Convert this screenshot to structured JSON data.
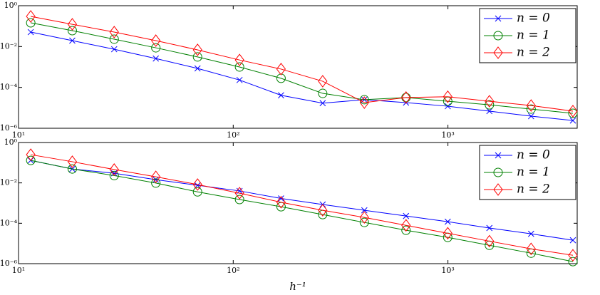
{
  "chart_data": [
    {
      "type": "line",
      "xscale": "log",
      "yscale": "log",
      "legend": "upper right",
      "grid": false,
      "x": [
        11.4,
        17.8,
        27.9,
        43.6,
        68.2,
        107,
        167,
        261,
        408,
        638,
        998,
        1560,
        2440,
        3820
      ],
      "xlim": [
        10,
        4000
      ],
      "xticks": [
        {
          "value": 10,
          "label": "10¹"
        },
        {
          "value": 100,
          "label": "10²"
        },
        {
          "value": 1000,
          "label": "10³"
        }
      ],
      "ylim": [
        1e-06,
        1
      ],
      "yticks": [
        {
          "value": 1e-06,
          "label": "10⁻⁶"
        },
        {
          "value": 0.0001,
          "label": "10⁻⁴"
        },
        {
          "value": 0.01,
          "label": "10⁻²"
        },
        {
          "value": 1,
          "label": "10⁰"
        }
      ],
      "series": [
        {
          "name": "n = 0",
          "color": "#0000ff",
          "marker": "x",
          "values": [
            0.051,
            0.0195,
            0.0074,
            0.0026,
            0.00085,
            0.00023,
            4.1e-05,
            1.7e-05,
            2.5e-05,
            1.8e-05,
            1.2e-05,
            6.9e-06,
            3.9e-06,
            2.4e-06
          ]
        },
        {
          "name": "n = 1",
          "color": "#008000",
          "marker": "o",
          "values": [
            0.145,
            0.06,
            0.023,
            0.0087,
            0.0031,
            0.001,
            0.00028,
            5.1e-05,
            2.5e-05,
            3.2e-05,
            2.1e-05,
            1.4e-05,
            8.7e-06,
            5.4e-06
          ]
        },
        {
          "name": "n = 2",
          "color": "#ff0000",
          "marker": "d",
          "values": [
            0.3,
            0.123,
            0.051,
            0.0195,
            0.0069,
            0.0022,
            0.00079,
            0.0002,
            1.8e-05,
            3.2e-05,
            3.5e-05,
            2.1e-05,
            1.3e-05,
            6.9e-06
          ]
        }
      ]
    },
    {
      "type": "line",
      "xscale": "log",
      "yscale": "log",
      "legend": "upper right",
      "grid": false,
      "xlabel": "h⁻¹",
      "x": [
        11.4,
        17.8,
        27.9,
        43.6,
        68.2,
        107,
        167,
        261,
        408,
        638,
        998,
        1560,
        2440,
        3820
      ],
      "xlim": [
        10,
        4000
      ],
      "xticks": [
        {
          "value": 10,
          "label": "10¹"
        },
        {
          "value": 100,
          "label": "10²"
        },
        {
          "value": 1000,
          "label": "10³"
        }
      ],
      "ylim": [
        1e-06,
        1
      ],
      "yticks": [
        {
          "value": 1e-06,
          "label": "10⁻⁶"
        },
        {
          "value": 0.0001,
          "label": "10⁻⁴"
        },
        {
          "value": 0.01,
          "label": "10⁻²"
        },
        {
          "value": 1,
          "label": "10⁰"
        }
      ],
      "series": [
        {
          "name": "n = 0",
          "color": "#0000ff",
          "marker": "x",
          "values": [
            0.13,
            0.049,
            0.03,
            0.0145,
            0.0076,
            0.004,
            0.0017,
            0.00085,
            0.00044,
            0.00023,
            0.00012,
            5.8e-05,
            3e-05,
            1.45e-05
          ]
        },
        {
          "name": "n = 1",
          "color": "#008000",
          "marker": "o",
          "values": [
            0.13,
            0.049,
            0.023,
            0.0098,
            0.0036,
            0.0015,
            0.00066,
            0.00027,
            0.00011,
            4.5e-05,
            2e-05,
            8.1e-06,
            3.3e-06,
            1.26e-06
          ]
        },
        {
          "name": "n = 2",
          "color": "#ff0000",
          "marker": "d",
          "values": [
            0.25,
            0.112,
            0.046,
            0.02,
            0.0083,
            0.0031,
            0.0011,
            0.00044,
            0.000195,
            7.9e-05,
            3.2e-05,
            1.3e-05,
            5.4e-06,
            2.6e-06
          ]
        }
      ]
    }
  ]
}
